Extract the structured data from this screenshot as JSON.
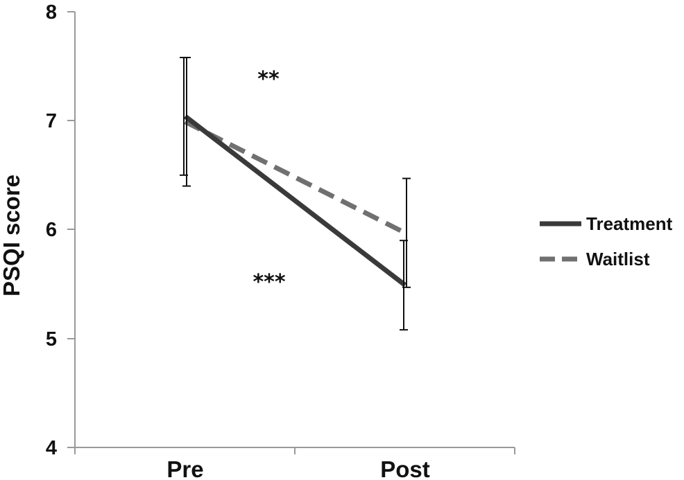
{
  "chart_data": {
    "type": "line",
    "ylabel": "PSQI score",
    "xlabel": "",
    "categories": [
      "Pre",
      "Post"
    ],
    "ylim": [
      4,
      8
    ],
    "yticks": [
      "4",
      "5",
      "6",
      "7",
      "8"
    ],
    "grid": false,
    "legend_position": "right",
    "series": [
      {
        "name": "Treatment",
        "values": [
          7.04,
          5.49
        ],
        "error": [
          0.54,
          0.41
        ],
        "color": "#3a3a3a",
        "style": "solid"
      },
      {
        "name": "Waitlist",
        "values": [
          6.99,
          5.97
        ],
        "error": [
          0.59,
          0.5
        ],
        "color": "#707070",
        "style": "dashed"
      }
    ],
    "annotations": [
      {
        "text": "**",
        "x": "Pre",
        "y": 7.4
      },
      {
        "text": "***",
        "x": "Pre",
        "y": 5.5
      }
    ]
  }
}
